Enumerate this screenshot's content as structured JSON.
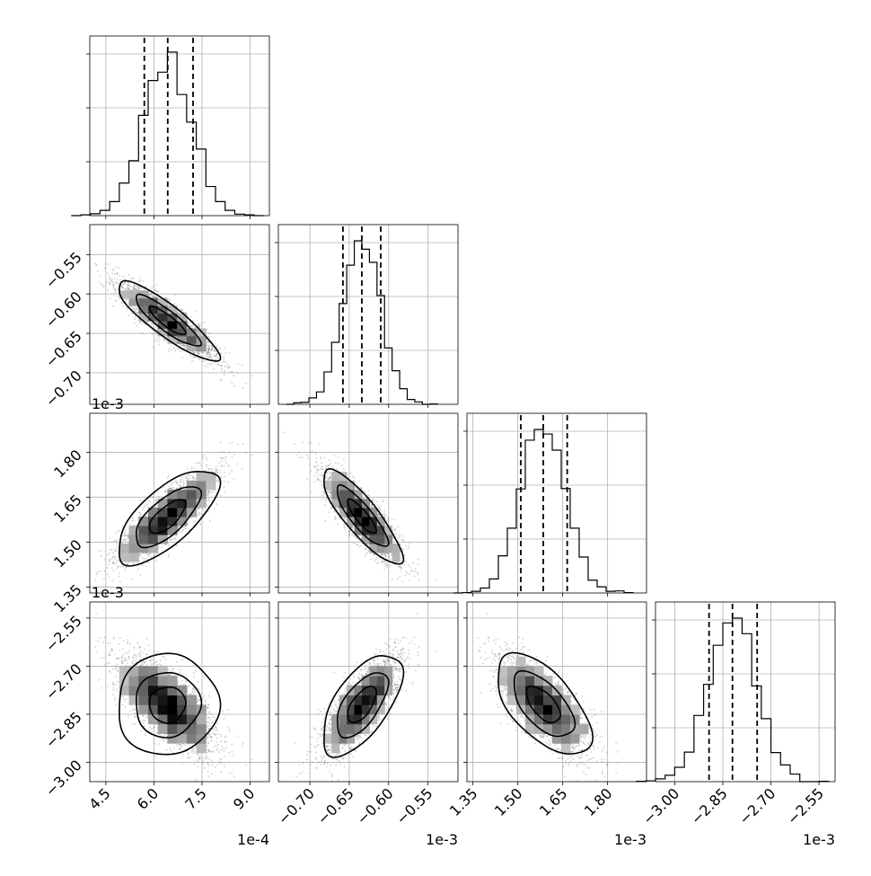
{
  "chart_data": {
    "type": "corner",
    "grid": true,
    "parameters": [
      {
        "range": [
          4.0,
          9.6
        ],
        "ticks": [
          "4.5",
          "6.0",
          "7.5",
          "9.0"
        ],
        "tick_values": [
          4.5,
          6.0,
          7.5,
          9.0
        ],
        "offset": "1e-4",
        "mean": 6.42,
        "sd": 0.75,
        "quantiles": [
          5.7,
          6.43,
          7.22
        ]
      },
      {
        "range": [
          -0.74,
          -0.512
        ],
        "ticks": [
          "−0.70",
          "−0.65",
          "−0.60",
          "−0.55"
        ],
        "tick_values": [
          -0.7,
          -0.65,
          -0.6,
          -0.55
        ],
        "offset": "1e-3",
        "mean": -0.634,
        "sd": 0.024,
        "quantiles": [
          -0.658,
          -0.634,
          -0.61
        ]
      },
      {
        "range": [
          1.33,
          1.93
        ],
        "ticks": [
          "1.35",
          "1.50",
          "1.65",
          "1.80"
        ],
        "tick_values": [
          1.35,
          1.5,
          1.65,
          1.8
        ],
        "offset": "1e-3",
        "mean": 1.585,
        "sd": 0.075,
        "quantiles": [
          1.51,
          1.585,
          1.665
        ]
      },
      {
        "range": [
          -3.06,
          -2.5
        ],
        "ticks": [
          "−3.00",
          "−2.85",
          "−2.70",
          "−2.55"
        ],
        "tick_values": [
          -3.0,
          -2.85,
          -2.7,
          -2.55
        ],
        "offset": "1e-3",
        "mean": -2.82,
        "sd": 0.075,
        "quantiles": [
          -2.893,
          -2.82,
          -2.743
        ]
      }
    ],
    "correlations": [
      {
        "row": 1,
        "col": 0,
        "rho": -0.88
      },
      {
        "row": 2,
        "col": 0,
        "rho": 0.7
      },
      {
        "row": 2,
        "col": 1,
        "rho": -0.85
      },
      {
        "row": 3,
        "col": 0,
        "rho": 0.02
      },
      {
        "row": 3,
        "col": 1,
        "rho": 0.62
      },
      {
        "row": 3,
        "col": 2,
        "rho": -0.6
      }
    ]
  }
}
